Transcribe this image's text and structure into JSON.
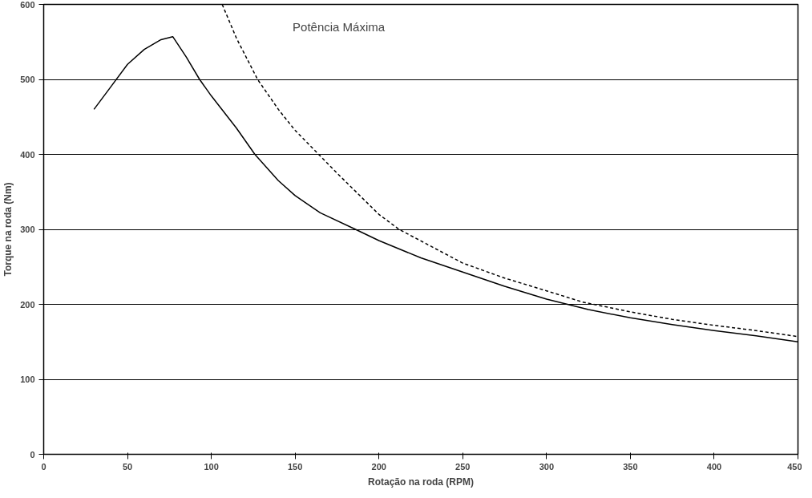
{
  "chart_data": {
    "type": "line",
    "xlabel": "Rotação na roda (RPM)",
    "ylabel": "Torque na roda (Nm)",
    "annotations": [
      "Potência Máxima"
    ],
    "series": [
      {
        "color": "#000000",
        "line_style": "solid",
        "x": [
          30,
          40,
          50,
          60,
          70,
          77,
          85,
          93,
          100,
          115,
          126,
          140,
          150,
          165,
          186,
          200,
          225,
          250,
          275,
          300,
          325,
          350,
          375,
          400,
          425,
          450
        ],
        "values": [
          460,
          490,
          520,
          540,
          553,
          557,
          530,
          500,
          478,
          435,
          400,
          365,
          345,
          322,
          300,
          285,
          262,
          243,
          224,
          207,
          193,
          182,
          173,
          165,
          158,
          150
        ]
      },
      {
        "color": "#000000",
        "line_style": "dashed",
        "x": [
          106.5,
          115,
          127.6,
          140,
          150,
          175,
          200,
          212,
          250,
          275,
          300,
          321.5,
          350,
          375,
          400,
          425,
          450
        ],
        "values": [
          600,
          555,
          500,
          460,
          432,
          375,
          320,
          300,
          255,
          235,
          218,
          203,
          190,
          180,
          172,
          165,
          157
        ]
      }
    ],
    "xlim": [
      0,
      450
    ],
    "ylim": [
      0,
      600
    ],
    "xticks": [
      0,
      50,
      100,
      150,
      200,
      250,
      300,
      350,
      400,
      450
    ],
    "yticks": [
      0,
      100,
      200,
      300,
      400,
      500,
      600
    ],
    "grid": "y"
  }
}
